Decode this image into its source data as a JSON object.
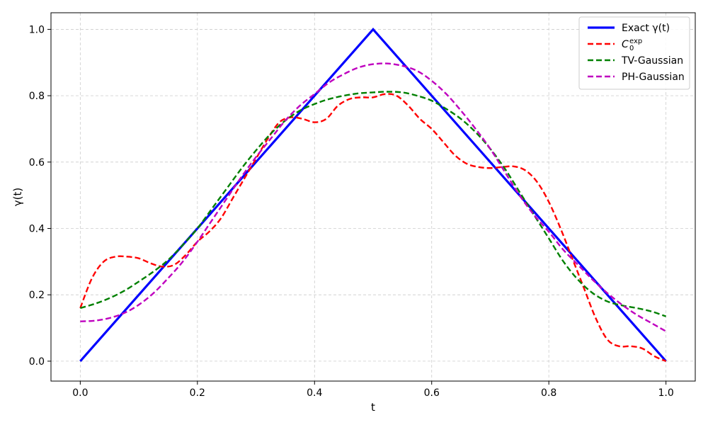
{
  "chart_data": {
    "type": "line",
    "xlabel": "t",
    "ylabel": "γ(t)",
    "xlim": [
      -0.05,
      1.05
    ],
    "ylim": [
      -0.06,
      1.05
    ],
    "xticks": [
      "0.0",
      "0.2",
      "0.4",
      "0.6",
      "0.8",
      "1.0"
    ],
    "yticks": [
      "0.0",
      "0.2",
      "0.4",
      "0.6",
      "0.8",
      "1.0"
    ],
    "grid": true,
    "legend_position": "top-right",
    "series": [
      {
        "name": "Exact γ(t)",
        "color": "#0000ff",
        "style": "solid",
        "x": [
          0.0,
          0.5,
          1.0
        ],
        "y": [
          0.0,
          1.0,
          0.0
        ]
      },
      {
        "name": "C0exp",
        "legend_main": "C",
        "legend_sub": "0",
        "legend_sup": "exp",
        "color": "#ff0000",
        "style": "dashed",
        "x": [
          0.0,
          0.02,
          0.04,
          0.06,
          0.08,
          0.1,
          0.12,
          0.14,
          0.16,
          0.18,
          0.2,
          0.22,
          0.24,
          0.26,
          0.28,
          0.3,
          0.32,
          0.34,
          0.36,
          0.38,
          0.4,
          0.42,
          0.44,
          0.46,
          0.48,
          0.5,
          0.52,
          0.54,
          0.56,
          0.58,
          0.6,
          0.62,
          0.64,
          0.66,
          0.68,
          0.7,
          0.72,
          0.74,
          0.76,
          0.78,
          0.8,
          0.82,
          0.84,
          0.86,
          0.88,
          0.9,
          0.92,
          0.94,
          0.96,
          0.98,
          1.0
        ],
        "y": [
          0.16,
          0.25,
          0.3,
          0.315,
          0.315,
          0.31,
          0.295,
          0.285,
          0.29,
          0.32,
          0.36,
          0.39,
          0.43,
          0.49,
          0.55,
          0.61,
          0.67,
          0.72,
          0.735,
          0.73,
          0.72,
          0.73,
          0.77,
          0.79,
          0.795,
          0.795,
          0.805,
          0.8,
          0.77,
          0.73,
          0.7,
          0.66,
          0.62,
          0.595,
          0.585,
          0.582,
          0.585,
          0.587,
          0.575,
          0.54,
          0.48,
          0.4,
          0.31,
          0.22,
          0.13,
          0.065,
          0.045,
          0.045,
          0.038,
          0.015,
          0.0
        ]
      },
      {
        "name": "TV-Gaussian",
        "color": "#008000",
        "style": "dashed",
        "x": [
          0.0,
          0.025,
          0.05,
          0.075,
          0.1,
          0.125,
          0.15,
          0.175,
          0.2,
          0.225,
          0.25,
          0.275,
          0.3,
          0.325,
          0.35,
          0.375,
          0.4,
          0.425,
          0.45,
          0.475,
          0.5,
          0.525,
          0.55,
          0.575,
          0.6,
          0.625,
          0.65,
          0.675,
          0.7,
          0.725,
          0.75,
          0.775,
          0.8,
          0.825,
          0.85,
          0.875,
          0.9,
          0.925,
          0.95,
          0.975,
          1.0
        ],
        "y": [
          0.16,
          0.173,
          0.19,
          0.212,
          0.24,
          0.27,
          0.305,
          0.35,
          0.4,
          0.46,
          0.52,
          0.58,
          0.635,
          0.685,
          0.725,
          0.755,
          0.775,
          0.79,
          0.8,
          0.807,
          0.81,
          0.812,
          0.81,
          0.8,
          0.785,
          0.76,
          0.73,
          0.69,
          0.64,
          0.58,
          0.51,
          0.44,
          0.37,
          0.3,
          0.245,
          0.205,
          0.18,
          0.168,
          0.16,
          0.15,
          0.135
        ]
      },
      {
        "name": "PH-Gaussian",
        "color": "#bf00bf",
        "style": "dashed",
        "x": [
          0.0,
          0.025,
          0.05,
          0.075,
          0.1,
          0.125,
          0.15,
          0.175,
          0.2,
          0.225,
          0.25,
          0.275,
          0.3,
          0.325,
          0.35,
          0.375,
          0.4,
          0.425,
          0.45,
          0.475,
          0.5,
          0.525,
          0.55,
          0.575,
          0.6,
          0.625,
          0.65,
          0.675,
          0.7,
          0.725,
          0.75,
          0.775,
          0.8,
          0.825,
          0.85,
          0.875,
          0.9,
          0.925,
          0.95,
          0.975,
          1.0
        ],
        "y": [
          0.12,
          0.122,
          0.13,
          0.145,
          0.17,
          0.205,
          0.25,
          0.3,
          0.36,
          0.425,
          0.49,
          0.555,
          0.615,
          0.67,
          0.725,
          0.77,
          0.805,
          0.84,
          0.865,
          0.885,
          0.895,
          0.897,
          0.89,
          0.875,
          0.845,
          0.805,
          0.755,
          0.7,
          0.64,
          0.57,
          0.5,
          0.44,
          0.39,
          0.335,
          0.29,
          0.245,
          0.205,
          0.17,
          0.14,
          0.115,
          0.09
        ]
      }
    ]
  }
}
